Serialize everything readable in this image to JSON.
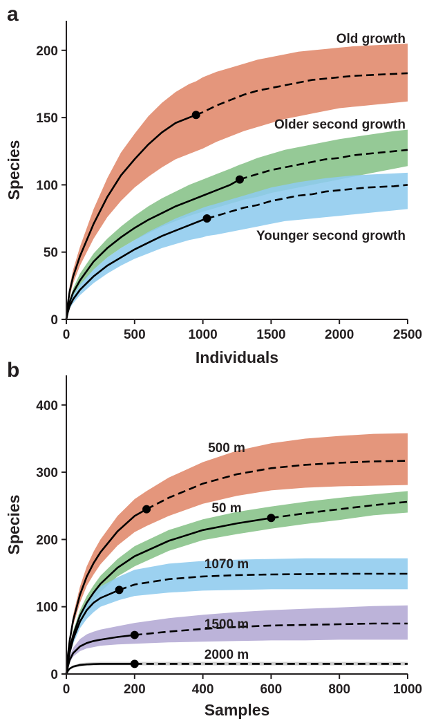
{
  "panels": [
    {
      "letter": "a",
      "chart_data": {
        "type": "line",
        "subtype": "rarefaction curves with confidence bands",
        "xlabel": "Individuals",
        "ylabel": "Species",
        "xlim": [
          0,
          2500
        ],
        "ylim": [
          0,
          222
        ],
        "xticks": [
          0,
          500,
          1000,
          1500,
          2000,
          2500
        ],
        "yticks": [
          0,
          50,
          100,
          150,
          200
        ],
        "grid": false,
        "legend": "none (curves labeled directly)",
        "series": [
          {
            "name": "Old growth",
            "color": "#e0876a",
            "x": [
              0,
              10,
              25,
              50,
              100,
              200,
              300,
              400,
              500,
              600,
              700,
              800,
              900,
              950,
              1000,
              1100,
              1200,
              1300,
              1400,
              1500,
              1600,
              1700,
              1800,
              1900,
              2000,
              2100,
              2200,
              2300,
              2400,
              2500
            ],
            "y": [
              0,
              11,
              21,
              32,
              47,
              71,
              91,
              107,
              119,
              130,
              139,
              146,
              150,
              152,
              154,
              159,
              163,
              167,
              170,
              172,
              174,
              176,
              178,
              179,
              180,
              181,
              181.5,
              182,
              182.5,
              183
            ],
            "lower": [
              0,
              9,
              17,
              27,
              40,
              60,
              76,
              88,
              98,
              106,
              113,
              119,
              123,
              125,
              127,
              132,
              136,
              140,
              143,
              146,
              149,
              151,
              153,
              155,
              157,
              158,
              159,
              160,
              161,
              162
            ],
            "upper": [
              0,
              13,
              25,
              37,
              54,
              82,
              105,
              124,
              138,
              151,
              161,
              169,
              175,
              177,
              180,
              184,
              187,
              190,
              193,
              195,
              197,
              199,
              200,
              201,
              202,
              203,
              203.5,
              204,
              204.5,
              205
            ],
            "rarefied_end_x": 950,
            "observed_point": {
              "x": 950,
              "y": 152
            }
          },
          {
            "name": "Older second growth",
            "color": "#86c288",
            "x": [
              0,
              10,
              25,
              50,
              100,
              200,
              300,
              400,
              500,
              600,
              700,
              800,
              900,
              1000,
              1100,
              1200,
              1270,
              1300,
              1400,
              1500,
              1600,
              1700,
              1800,
              1900,
              2000,
              2100,
              2200,
              2300,
              2400,
              2500
            ],
            "y": [
              0,
              7,
              13,
              20,
              29,
              43,
              53,
              61,
              68,
              74,
              79,
              84,
              88,
              92,
              96,
              100,
              104,
              105,
              108,
              111,
              113,
              115,
              117,
              119,
              120,
              122,
              123,
              124,
              125,
              126
            ],
            "lower": [
              0,
              6,
              11,
              17,
              25,
              37,
              46,
              53,
              59,
              64,
              69,
              73,
              77,
              80,
              83,
              86,
              88,
              89,
              91,
              94,
              96,
              98,
              100,
              102,
              104,
              106,
              108,
              110,
              112,
              114
            ],
            "upper": [
              0,
              8,
              15,
              23,
              34,
              49,
              60,
              69,
              77,
              84,
              90,
              95,
              100,
              104,
              108,
              112,
              115,
              116,
              120,
              123,
              126,
              128,
              130,
              132,
              134,
              135.5,
              137,
              138.5,
              140,
              141
            ],
            "rarefied_end_x": 1270,
            "observed_point": {
              "x": 1270,
              "y": 104
            }
          },
          {
            "name": "Younger second growth",
            "color": "#8ecbee",
            "x": [
              0,
              10,
              25,
              50,
              100,
              200,
              300,
              400,
              500,
              600,
              700,
              800,
              900,
              1000,
              1030,
              1100,
              1200,
              1300,
              1400,
              1500,
              1600,
              1700,
              1800,
              1900,
              2000,
              2100,
              2200,
              2300,
              2400,
              2500
            ],
            "y": [
              0,
              5,
              10,
              15,
              22,
              32,
              40,
              46,
              52,
              57,
              62,
              66,
              70,
              74,
              75,
              77,
              80,
              83,
              85,
              88,
              90,
              92,
              93,
              95,
              96,
              97,
              98,
              98.5,
              99,
              100
            ],
            "lower": [
              0,
              4,
              8,
              12,
              18,
              27,
              34,
              40,
              45,
              49,
              53,
              56,
              59,
              61,
              62,
              63,
              65,
              67,
              69,
              71,
              73,
              74,
              75,
              76,
              77,
              78,
              79,
              80,
              81,
              82
            ],
            "upper": [
              0,
              6,
              12,
              18,
              26,
              37,
              46,
              53,
              59,
              65,
              70,
              75,
              79,
              83,
              84,
              86,
              89,
              92,
              95,
              98,
              100,
              102,
              103.5,
              105,
              106,
              107,
              107.5,
              108,
              108.5,
              109
            ],
            "rarefied_end_x": 1030,
            "observed_point": {
              "x": 1030,
              "y": 75
            }
          }
        ]
      }
    },
    {
      "letter": "b",
      "chart_data": {
        "type": "line",
        "subtype": "rarefaction curves with confidence bands",
        "xlabel": "Samples",
        "ylabel": "Species",
        "xlim": [
          0,
          1000
        ],
        "ylim": [
          0,
          444
        ],
        "xticks": [
          0,
          200,
          400,
          600,
          800,
          1000
        ],
        "yticks": [
          0,
          100,
          200,
          300,
          400
        ],
        "grid": false,
        "legend": "none (curves labeled directly)",
        "series": [
          {
            "name": "500 m",
            "color": "#e0876a",
            "x": [
              0,
              5,
              10,
              20,
              40,
              60,
              80,
              100,
              150,
              200,
              235,
              300,
              400,
              500,
              600,
              700,
              800,
              900,
              1000
            ],
            "y": [
              0,
              30,
              50,
              80,
              118,
              145,
              165,
              181,
              212,
              235,
              245,
              262,
              283,
              297,
              306,
              311,
              314,
              316,
              317
            ],
            "lower": [
              0,
              27,
              45,
              72,
              106,
              131,
              148,
              163,
              191,
              211,
              220,
              235,
              253,
              265,
              273,
              277,
              279,
              280,
              281
            ],
            "upper": [
              0,
              33,
              55,
              88,
              130,
              160,
              182,
              200,
              235,
              260,
              272,
              292,
              315,
              332,
              343,
              350,
              354,
              357,
              358
            ],
            "rarefied_end_x": 235,
            "observed_point": {
              "x": 235,
              "y": 245
            }
          },
          {
            "name": "50 m",
            "color": "#86c288",
            "x": [
              0,
              5,
              10,
              20,
              40,
              60,
              80,
              100,
              150,
              200,
              300,
              400,
              500,
              600,
              700,
              800,
              900,
              1000
            ],
            "y": [
              0,
              22,
              38,
              58,
              87,
              106,
              121,
              134,
              158,
              175,
              198,
              214,
              224,
              232,
              239,
              245,
              251,
              256
            ],
            "lower": [
              0,
              20,
              34,
              52,
              79,
              96,
              110,
              122,
              145,
              160,
              183,
              199,
              208,
              216,
              223,
              229,
              236,
              240
            ],
            "upper": [
              0,
              24,
              42,
              64,
              95,
              116,
              132,
              146,
              171,
              190,
              214,
              230,
              241,
              249,
              256,
              262,
              267,
              272
            ],
            "rarefied_end_x": 600,
            "observed_point": {
              "x": 600,
              "y": 232
            }
          },
          {
            "name": "1070 m",
            "color": "#8ecbee",
            "x": [
              0,
              5,
              10,
              20,
              40,
              60,
              80,
              100,
              155,
              200,
              300,
              400,
              500,
              600,
              700,
              800,
              900,
              1000
            ],
            "y": [
              0,
              18,
              32,
              52,
              78,
              95,
              106,
              113,
              125,
              133,
              141,
              145,
              147,
              148,
              148.5,
              149,
              149,
              149
            ],
            "lower": [
              0,
              16,
              28,
              45,
              68,
              82,
              92,
              100,
              110,
              116,
              121,
              124,
              125,
              126,
              126,
              126,
              126,
              126
            ],
            "upper": [
              0,
              20,
              36,
              59,
              89,
              108,
              121,
              130,
              145,
              155,
              164,
              168,
              170,
              171,
              172,
              172,
              172,
              172
            ],
            "rarefied_end_x": 155,
            "observed_point": {
              "x": 155,
              "y": 125
            }
          },
          {
            "name": "1500 m",
            "color": "#b3a9d4",
            "x": [
              0,
              5,
              10,
              20,
              40,
              60,
              80,
              100,
              150,
              200,
              300,
              400,
              500,
              600,
              700,
              800,
              900,
              1000
            ],
            "y": [
              0,
              12,
              21,
              31,
              41,
              46,
              49,
              51,
              55,
              58,
              63,
              67,
              70,
              72,
              73,
              74,
              75,
              75
            ],
            "lower": [
              0,
              10,
              17,
              26,
              34,
              38,
              40,
              42,
              44,
              45,
              47,
              48,
              49,
              50,
              50,
              51,
              51,
              51
            ],
            "upper": [
              0,
              15,
              26,
              39,
              52,
              59,
              63,
              66,
              71,
              76,
              83,
              88,
              92,
              95,
              97,
              99,
              101,
              102
            ],
            "rarefied_end_x": 200,
            "observed_point": {
              "x": 200,
              "y": 58
            }
          },
          {
            "name": "2000 m",
            "color": "#c8c8c8",
            "x": [
              0,
              5,
              10,
              20,
              40,
              60,
              80,
              100,
              150,
              200,
              300,
              400,
              500,
              600,
              700,
              800,
              900,
              1000
            ],
            "y": [
              0,
              5,
              8,
              11,
              13.5,
              14.3,
              14.7,
              15,
              15,
              15,
              15,
              15,
              15,
              15,
              15,
              15,
              15,
              15
            ],
            "lower": [
              0,
              4,
              6.5,
              9,
              11,
              12,
              12.5,
              12.8,
              12.8,
              12.8,
              12.8,
              12.8,
              12.8,
              12.8,
              12.8,
              12.8,
              12.8,
              12.8
            ],
            "upper": [
              0,
              6,
              9.5,
              13,
              16,
              17,
              17.5,
              18,
              18,
              18,
              18,
              18,
              18,
              18,
              18,
              18,
              18,
              18
            ],
            "rarefied_end_x": 200,
            "observed_point": {
              "x": 200,
              "y": 15
            }
          }
        ]
      }
    }
  ]
}
